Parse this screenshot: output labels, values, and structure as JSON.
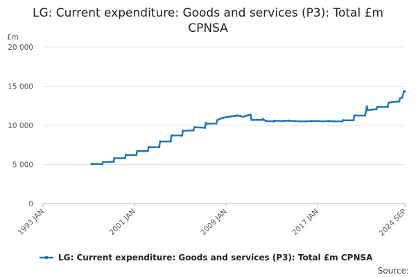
{
  "chart_data": {
    "type": "line",
    "title_line1": "LG: Current expenditure: Goods and services (P3): Total £m",
    "title_line2": "CPNSA",
    "ylabel": "£m",
    "ylim": [
      0,
      20000
    ],
    "yticks": [
      0,
      5000,
      10000,
      15000,
      20000
    ],
    "ytick_labels": [
      "0",
      "5 000",
      "10 000",
      "15 000",
      "20 000"
    ],
    "xlim": [
      "1993 JAN",
      "2024 SEP"
    ],
    "xticks": [
      "1993 JAN",
      "2001 JAN",
      "2009 JAN",
      "2017 JAN",
      "2024 SEP"
    ],
    "grid": true,
    "legend_position": "bottom",
    "line_color": "#1f77b4",
    "series": [
      {
        "name": "LG: Current expenditure: Goods and services (P3): Total £m CPNSA",
        "points": [
          [
            "1997 APR",
            5050
          ],
          [
            "1998 MAR",
            5050
          ],
          [
            "1998 APR",
            5300
          ],
          [
            "1999 MAR",
            5350
          ],
          [
            "1999 APR",
            5800
          ],
          [
            "2000 MAR",
            5800
          ],
          [
            "2000 APR",
            6200
          ],
          [
            "2001 MAR",
            6200
          ],
          [
            "2001 APR",
            6700
          ],
          [
            "2002 MAR",
            6700
          ],
          [
            "2002 APR",
            7200
          ],
          [
            "2003 MAR",
            7200
          ],
          [
            "2003 APR",
            7950
          ],
          [
            "2004 MAR",
            7950
          ],
          [
            "2004 APR",
            8700
          ],
          [
            "2005 MAR",
            8700
          ],
          [
            "2005 APR",
            9300
          ],
          [
            "2006 MAR",
            9350
          ],
          [
            "2006 APR",
            9750
          ],
          [
            "2007 MAR",
            9700
          ],
          [
            "2007 APR",
            10300
          ],
          [
            "2007 MAY",
            10200
          ],
          [
            "2008 MAR",
            10250
          ],
          [
            "2008 APR",
            10650
          ],
          [
            "2008 JUL",
            10850
          ],
          [
            "2008 OCT",
            10950
          ],
          [
            "2009 JAN",
            11050
          ],
          [
            "2009 APR",
            11100
          ],
          [
            "2009 JUL",
            11150
          ],
          [
            "2009 OCT",
            11200
          ],
          [
            "2010 JAN",
            11250
          ],
          [
            "2010 APR",
            11200
          ],
          [
            "2010 JUL",
            11100
          ],
          [
            "2010 OCT",
            11200
          ],
          [
            "2011 JAN",
            11300
          ],
          [
            "2011 MAR",
            11350
          ],
          [
            "2011 APR",
            10700
          ],
          [
            "2012 MAR",
            10700
          ],
          [
            "2012 APR",
            10800
          ],
          [
            "2012 JUL",
            10550
          ],
          [
            "2013 MAR",
            10500
          ],
          [
            "2013 APR",
            10600
          ],
          [
            "2014 JAN",
            10550
          ],
          [
            "2014 JUL",
            10600
          ],
          [
            "2015 JAN",
            10550
          ],
          [
            "2015 JUL",
            10500
          ],
          [
            "2016 JAN",
            10500
          ],
          [
            "2016 JUL",
            10550
          ],
          [
            "2017 JAN",
            10550
          ],
          [
            "2017 JUL",
            10500
          ],
          [
            "2018 JAN",
            10550
          ],
          [
            "2018 JUL",
            10500
          ],
          [
            "2019 MAR",
            10500
          ],
          [
            "2019 APR",
            10650
          ],
          [
            "2020 MAR",
            10650
          ],
          [
            "2020 APR",
            11250
          ],
          [
            "2021 MAR",
            11250
          ],
          [
            "2021 APR",
            11700
          ],
          [
            "2021 MAY",
            12400
          ],
          [
            "2021 JUN",
            11950
          ],
          [
            "2021 OCT",
            12000
          ],
          [
            "2022 MAR",
            12050
          ],
          [
            "2022 APR",
            12350
          ],
          [
            "2023 MAR",
            12350
          ],
          [
            "2023 APR",
            12900
          ],
          [
            "2023 JUL",
            12950
          ],
          [
            "2024 MAR",
            13050
          ],
          [
            "2024 APR",
            13450
          ],
          [
            "2024 JUN",
            13550
          ],
          [
            "2024 AUG",
            14300
          ],
          [
            "2024 SEP",
            14350
          ]
        ]
      }
    ]
  },
  "footer": {
    "source_label": "Source:"
  }
}
